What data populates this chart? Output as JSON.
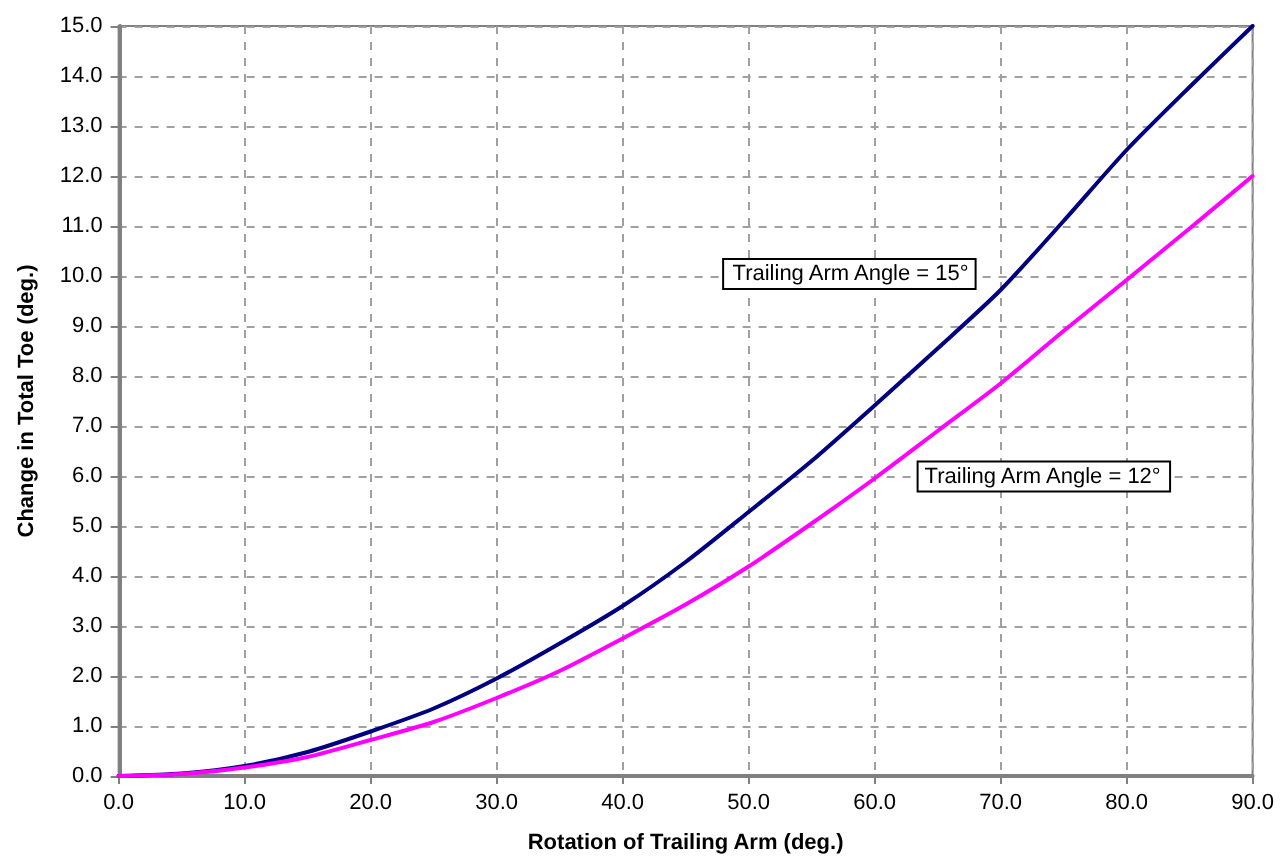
{
  "chart_data": {
    "type": "line",
    "xlabel": "Rotation of Trailing Arm (deg.)",
    "ylabel": "Change in Total Toe (deg.)",
    "x": [
      0,
      5,
      10,
      15,
      20,
      25,
      30,
      35,
      40,
      45,
      50,
      55,
      60,
      65,
      70,
      75,
      80,
      85,
      90
    ],
    "series": [
      {
        "name": "Trailing Arm Angle = 15°",
        "color": "#000080",
        "values": [
          0,
          0.05,
          0.2,
          0.48,
          0.89,
          1.35,
          1.95,
          2.65,
          3.4,
          4.28,
          5.28,
          6.3,
          7.41,
          8.55,
          9.72,
          11.1,
          12.52,
          13.78,
          15.0
        ]
      },
      {
        "name": "Trailing Arm Angle = 12°",
        "color": "#ff00ff",
        "values": [
          0,
          0.04,
          0.17,
          0.38,
          0.72,
          1.08,
          1.56,
          2.1,
          2.75,
          3.43,
          4.19,
          5.05,
          5.95,
          6.9,
          7.85,
          8.9,
          9.92,
          10.95,
          12.0
        ]
      }
    ],
    "xlim": [
      0,
      90
    ],
    "xticks": [
      {
        "value": 0,
        "label": "0.0"
      },
      {
        "value": 10,
        "label": "10.0"
      },
      {
        "value": 20,
        "label": "20.0"
      },
      {
        "value": 30,
        "label": "30.0"
      },
      {
        "value": 40,
        "label": "40.0"
      },
      {
        "value": 50,
        "label": "50.0"
      },
      {
        "value": 60,
        "label": "60.0"
      },
      {
        "value": 70,
        "label": "70.0"
      },
      {
        "value": 80,
        "label": "80.0"
      },
      {
        "value": 90,
        "label": "90.0"
      }
    ],
    "ylim": [
      0,
      15
    ],
    "yticks": [
      {
        "value": 0,
        "label": "0.0"
      },
      {
        "value": 1,
        "label": "1.0"
      },
      {
        "value": 2,
        "label": "2.0"
      },
      {
        "value": 3,
        "label": "3.0"
      },
      {
        "value": 4,
        "label": "4.0"
      },
      {
        "value": 5,
        "label": "5.0"
      },
      {
        "value": 6,
        "label": "6.0"
      },
      {
        "value": 7,
        "label": "7.0"
      },
      {
        "value": 8,
        "label": "8.0"
      },
      {
        "value": 9,
        "label": "9.0"
      },
      {
        "value": 10,
        "label": "10.0"
      },
      {
        "value": 11,
        "label": "11.0"
      },
      {
        "value": 12,
        "label": "12.0"
      },
      {
        "value": 13,
        "label": "13.0"
      },
      {
        "value": 14,
        "label": "14.0"
      },
      {
        "value": 15,
        "label": "15.0"
      }
    ],
    "grid": true,
    "marker": "none",
    "line_style": "solid"
  }
}
